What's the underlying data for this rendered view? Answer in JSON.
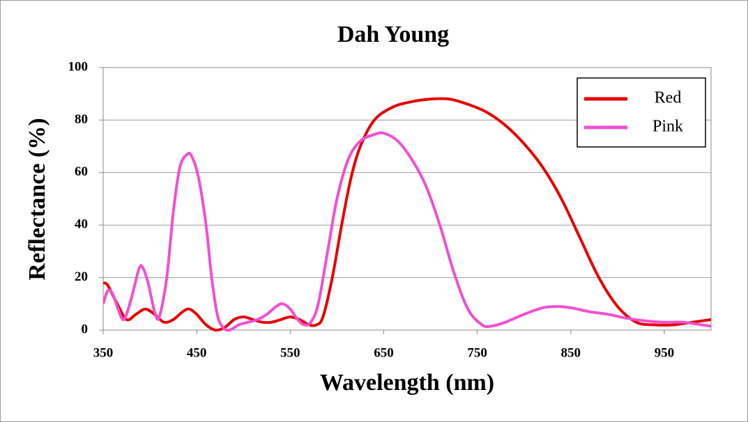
{
  "chart_data": {
    "type": "line",
    "title": "Dah Young",
    "x_label": "Wavelength (nm)",
    "y_label": "Reflectance  (%)",
    "xlim": [
      350,
      1000
    ],
    "xticks": [
      350,
      450,
      550,
      650,
      750,
      850,
      950
    ],
    "ylim": [
      0,
      100
    ],
    "yticks": [
      0,
      20,
      40,
      60,
      80,
      100
    ],
    "grid": true,
    "legend": "upper right",
    "series": [
      {
        "name": "Red",
        "color": "#e60000",
        "x": [
          350,
          355,
          365,
          375,
          385,
          395,
          405,
          415,
          425,
          435,
          442,
          450,
          460,
          470,
          480,
          490,
          500,
          510,
          520,
          530,
          540,
          550,
          560,
          570,
          578,
          585,
          595,
          605,
          615,
          625,
          640,
          660,
          680,
          700,
          720,
          740,
          760,
          780,
          800,
          820,
          840,
          860,
          880,
          900,
          920,
          940,
          960,
          980,
          1000
        ],
        "values": [
          18,
          17,
          10,
          4,
          6,
          8,
          6,
          3,
          4,
          7,
          8,
          6,
          2,
          0,
          1,
          4,
          5,
          4,
          3,
          3,
          4,
          5,
          4,
          2,
          2,
          5,
          20,
          40,
          58,
          70,
          80,
          85,
          87,
          88,
          88,
          86,
          83,
          78,
          71,
          62,
          50,
          35,
          20,
          9,
          3,
          2,
          2,
          3,
          4
        ]
      },
      {
        "name": "Pink",
        "color": "#f050d2",
        "x": [
          350,
          355,
          360,
          365,
          372,
          380,
          388,
          392,
          398,
          405,
          410,
          418,
          425,
          432,
          440,
          445,
          452,
          460,
          466,
          472,
          478,
          485,
          495,
          505,
          515,
          525,
          535,
          542,
          550,
          558,
          565,
          572,
          580,
          590,
          600,
          612,
          625,
          640,
          650,
          665,
          680,
          695,
          710,
          725,
          740,
          755,
          765,
          780,
          800,
          820,
          835,
          850,
          870,
          890,
          910,
          930,
          950,
          970,
          990,
          1000
        ],
        "values": [
          10,
          15,
          14,
          9,
          4,
          12,
          23,
          24,
          18,
          7,
          5,
          20,
          45,
          62,
          67,
          66,
          58,
          40,
          20,
          6,
          1,
          0,
          2,
          3,
          4,
          6,
          9,
          10,
          8,
          4,
          2,
          3,
          10,
          30,
          50,
          65,
          72,
          74.5,
          75,
          72,
          65,
          55,
          40,
          22,
          8,
          2,
          1.5,
          3,
          6,
          8.5,
          9,
          8.5,
          7,
          6,
          4.5,
          3.5,
          3,
          3,
          2,
          1.5
        ]
      }
    ]
  }
}
